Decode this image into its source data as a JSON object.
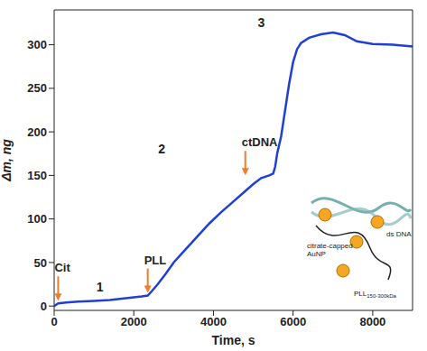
{
  "chart_data": {
    "type": "line",
    "x_label": "Time, s",
    "y_label": "Δm, ng",
    "xlim": [
      0,
      9000
    ],
    "xticks": [
      0,
      2000,
      4000,
      6000,
      8000
    ],
    "ylim": [
      -5,
      340
    ],
    "yticks": [
      0,
      50,
      100,
      150,
      200,
      250,
      300
    ],
    "grid": false,
    "series": [
      {
        "color": "#1f3fd6",
        "x": [
          0,
          100,
          300,
          600,
          1000,
          1400,
          1800,
          2200,
          2350,
          2450,
          2600,
          2800,
          3000,
          3300,
          3600,
          3900,
          4200,
          4500,
          4800,
          5000,
          5200,
          5400,
          5500,
          5550,
          5600,
          5700,
          5800,
          5900,
          6000,
          6100,
          6200,
          6400,
          6700,
          7000,
          7300,
          7600,
          8000,
          8500,
          9000
        ],
        "values": [
          0,
          3,
          4,
          5,
          6,
          7,
          9,
          11,
          12,
          17,
          25,
          37,
          50,
          65,
          80,
          95,
          108,
          120,
          132,
          140,
          147,
          150,
          152,
          160,
          175,
          195,
          225,
          255,
          280,
          295,
          302,
          308,
          312,
          314,
          311,
          304,
          301,
          300,
          298
        ]
      }
    ],
    "annotations": [
      {
        "text": "Cit",
        "x": 100,
        "y": 3,
        "color": "#f07c2a"
      },
      {
        "text": "PLL",
        "x": 2350,
        "y": 12,
        "color": "#f07c2a"
      },
      {
        "text": "ctDNA",
        "x": 4800,
        "y": 147,
        "color": "#f07c2a"
      }
    ],
    "stage_labels": [
      {
        "text": "1",
        "x": 1150,
        "y": 21
      },
      {
        "text": "2",
        "x": 2700,
        "y": 179
      },
      {
        "text": "3",
        "x": 5200,
        "y": 324
      }
    ],
    "inset_labels": [
      "citrate-capped AuNP",
      "ds DNA",
      "PLL150-300kDa"
    ]
  }
}
